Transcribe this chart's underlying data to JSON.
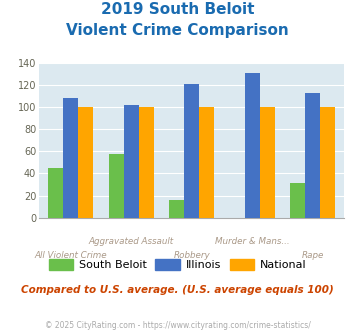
{
  "title_line1": "2019 South Beloit",
  "title_line2": "Violent Crime Comparison",
  "xtick_labels_top": [
    "",
    "Aggravated Assault",
    "",
    "Murder & Mans...",
    ""
  ],
  "xtick_labels_bot": [
    "All Violent Crime",
    "",
    "Robbery",
    "",
    "Rape"
  ],
  "south_beloit": [
    45,
    58,
    16,
    0,
    31
  ],
  "illinois": [
    108,
    102,
    121,
    131,
    113
  ],
  "national": [
    100,
    100,
    100,
    100,
    100
  ],
  "south_beloit_color": "#6abf4b",
  "illinois_color": "#4472c4",
  "national_color": "#ffa500",
  "ylim": [
    0,
    140
  ],
  "yticks": [
    0,
    20,
    40,
    60,
    80,
    100,
    120,
    140
  ],
  "plot_bg": "#dce9f0",
  "title_color": "#1a6bb0",
  "subtitle_note": "Compared to U.S. average. (U.S. average equals 100)",
  "copyright": "© 2025 CityRating.com - https://www.cityrating.com/crime-statistics/",
  "legend_labels": [
    "South Beloit",
    "Illinois",
    "National"
  ]
}
